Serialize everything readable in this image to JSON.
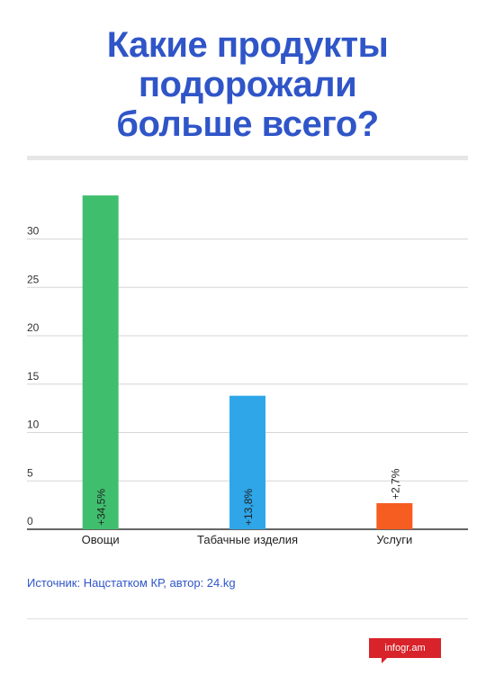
{
  "title_lines": [
    "Какие продукты",
    "подорожали",
    "больше всего?"
  ],
  "source": "Источник: Нацстатком КР, автор: 24.kg",
  "logo": {
    "text": "infogr.am",
    "color": "#d8232a"
  },
  "colors": {
    "title": "#2f55c8",
    "grid": "#d6d6d6",
    "axis": "#333333"
  },
  "chart_data": {
    "type": "bar",
    "categories": [
      "Овощи",
      "Табачные изделия",
      "Услуги"
    ],
    "values": [
      34.5,
      13.8,
      2.7
    ],
    "data_labels": [
      "+34,5%",
      "+13,8%",
      "+2,7%"
    ],
    "bar_colors": [
      "#3fbf6e",
      "#2ea6e8",
      "#f65d21"
    ],
    "yticks": [
      0,
      5,
      10,
      15,
      20,
      25,
      30
    ],
    "ylim": [
      0,
      34
    ],
    "grid": true,
    "xlabel": "",
    "ylabel": ""
  }
}
